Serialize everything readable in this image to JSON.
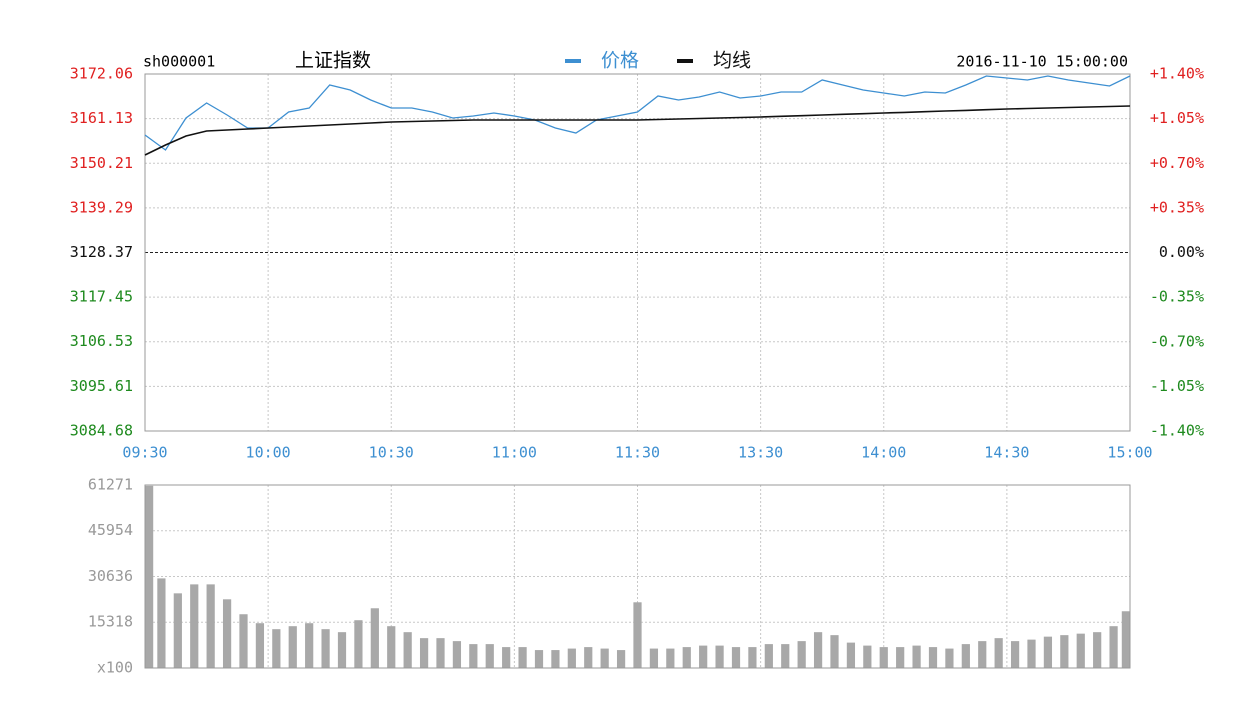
{
  "chart_data": [
    {
      "type": "line",
      "code": "sh000001",
      "title": "上证指数",
      "datetime": "2016-11-10 15:00:00",
      "x": [
        0,
        5,
        10,
        15,
        20,
        25,
        30,
        35,
        40,
        45,
        50,
        55,
        60,
        65,
        70,
        75,
        80,
        85,
        90,
        95,
        100,
        105,
        110,
        115,
        120,
        125,
        130,
        135,
        140,
        145,
        150,
        155,
        160,
        165,
        170,
        175,
        180,
        185,
        190,
        195,
        200,
        205,
        210,
        215,
        220,
        225,
        230,
        235,
        240
      ],
      "series": [
        {
          "name": "价格",
          "color": "#3d8fd1",
          "values": [
            3157.13,
            3153.46,
            3161.29,
            3164.96,
            3162.02,
            3158.84,
            3158.84,
            3162.76,
            3163.74,
            3169.37,
            3168.14,
            3165.7,
            3163.74,
            3163.74,
            3162.76,
            3161.29,
            3161.78,
            3162.51,
            3161.78,
            3160.8,
            3158.84,
            3157.62,
            3160.8,
            3161.78,
            3162.76,
            3166.68,
            3165.7,
            3166.43,
            3167.65,
            3166.19,
            3166.68,
            3167.65,
            3167.65,
            3170.59,
            3169.37,
            3168.14,
            3167.41,
            3166.68,
            3167.65,
            3167.41,
            3169.37,
            3171.57,
            3171.08,
            3170.59,
            3171.57,
            3170.59,
            3169.86,
            3169.12,
            3171.57
          ]
        },
        {
          "name": "均线",
          "color": "#111111",
          "values": [
            3152.23,
            3154.68,
            3156.88,
            3158.11,
            3158.35,
            3158.6,
            3158.84,
            3159.09,
            3159.33,
            3159.57,
            3159.82,
            3160.06,
            3160.31,
            3160.43,
            3160.56,
            3160.68,
            3160.8,
            3160.8,
            3160.8,
            3160.8,
            3160.8,
            3160.8,
            3160.8,
            3160.8,
            3160.8,
            3160.92,
            3161.04,
            3161.17,
            3161.29,
            3161.41,
            3161.53,
            3161.7,
            3161.86,
            3162.02,
            3162.19,
            3162.35,
            3162.51,
            3162.67,
            3162.84,
            3163.0,
            3163.16,
            3163.33,
            3163.49,
            3163.61,
            3163.74,
            3163.86,
            3163.98,
            3164.1,
            3164.23
          ]
        }
      ],
      "xlim": [
        0,
        240
      ],
      "xticks": [
        {
          "value": 0,
          "label": "09:30"
        },
        {
          "value": 30,
          "label": "10:00"
        },
        {
          "value": 60,
          "label": "10:30"
        },
        {
          "value": 90,
          "label": "11:00"
        },
        {
          "value": 120,
          "label": "11:30"
        },
        {
          "value": 150,
          "label": "13:30"
        },
        {
          "value": 180,
          "label": "14:00"
        },
        {
          "value": 210,
          "label": "14:30"
        },
        {
          "value": 240,
          "label": "15:00"
        }
      ],
      "ylim": [
        3084.68,
        3172.06
      ],
      "yticks": [
        3172.06,
        3161.13,
        3150.21,
        3139.29,
        3128.37,
        3117.45,
        3106.53,
        3095.61,
        3084.68
      ],
      "y2lim": [
        -1.4,
        1.4
      ],
      "y2ticks": [
        {
          "value": 1.4,
          "label": "+1.40%"
        },
        {
          "value": 1.05,
          "label": "+1.05%"
        },
        {
          "value": 0.7,
          "label": "+0.70%"
        },
        {
          "value": 0.35,
          "label": "+0.35%"
        },
        {
          "value": 0,
          "label": "0.00%"
        },
        {
          "value": -0.35,
          "label": "-0.35%"
        },
        {
          "value": -0.7,
          "label": "-0.70%"
        },
        {
          "value": -1.05,
          "label": "-1.05%"
        },
        {
          "value": -1.4,
          "label": "-1.40%"
        }
      ],
      "up_color": "#e02020",
      "down_color": "#1e8a1e",
      "grid": true
    },
    {
      "type": "bar",
      "color": "#a8a8a8",
      "x": [
        0,
        4,
        8,
        12,
        16,
        20,
        24,
        28,
        32,
        36,
        40,
        44,
        48,
        52,
        56,
        60,
        64,
        68,
        72,
        76,
        80,
        84,
        88,
        92,
        96,
        100,
        104,
        108,
        112,
        116,
        120,
        124,
        128,
        132,
        136,
        140,
        144,
        148,
        152,
        156,
        160,
        164,
        168,
        172,
        176,
        180,
        184,
        188,
        192,
        196,
        200,
        204,
        208,
        212,
        216,
        220,
        224,
        228,
        232,
        236,
        240
      ],
      "values": [
        61000,
        30000,
        25000,
        28000,
        28000,
        23000,
        18000,
        15000,
        13000,
        14000,
        15000,
        13000,
        12000,
        16000,
        20000,
        14000,
        12000,
        10000,
        10000,
        9000,
        8000,
        8000,
        7000,
        7000,
        6000,
        6000,
        6500,
        7000,
        6500,
        6000,
        22000,
        6500,
        6500,
        7000,
        7500,
        7500,
        7000,
        7000,
        8000,
        8000,
        9000,
        12000,
        11000,
        8500,
        7500,
        7000,
        7000,
        7500,
        7000,
        6500,
        8000,
        9000,
        10000,
        9000,
        9500,
        10500,
        11000,
        11500,
        12000,
        14000,
        19000
      ],
      "xlim": [
        0,
        240
      ],
      "ylim": [
        0,
        61271
      ],
      "yticks": [
        {
          "value": 0,
          "label": "x100"
        },
        15318,
        30636,
        45954,
        61271
      ],
      "grid": true
    }
  ]
}
